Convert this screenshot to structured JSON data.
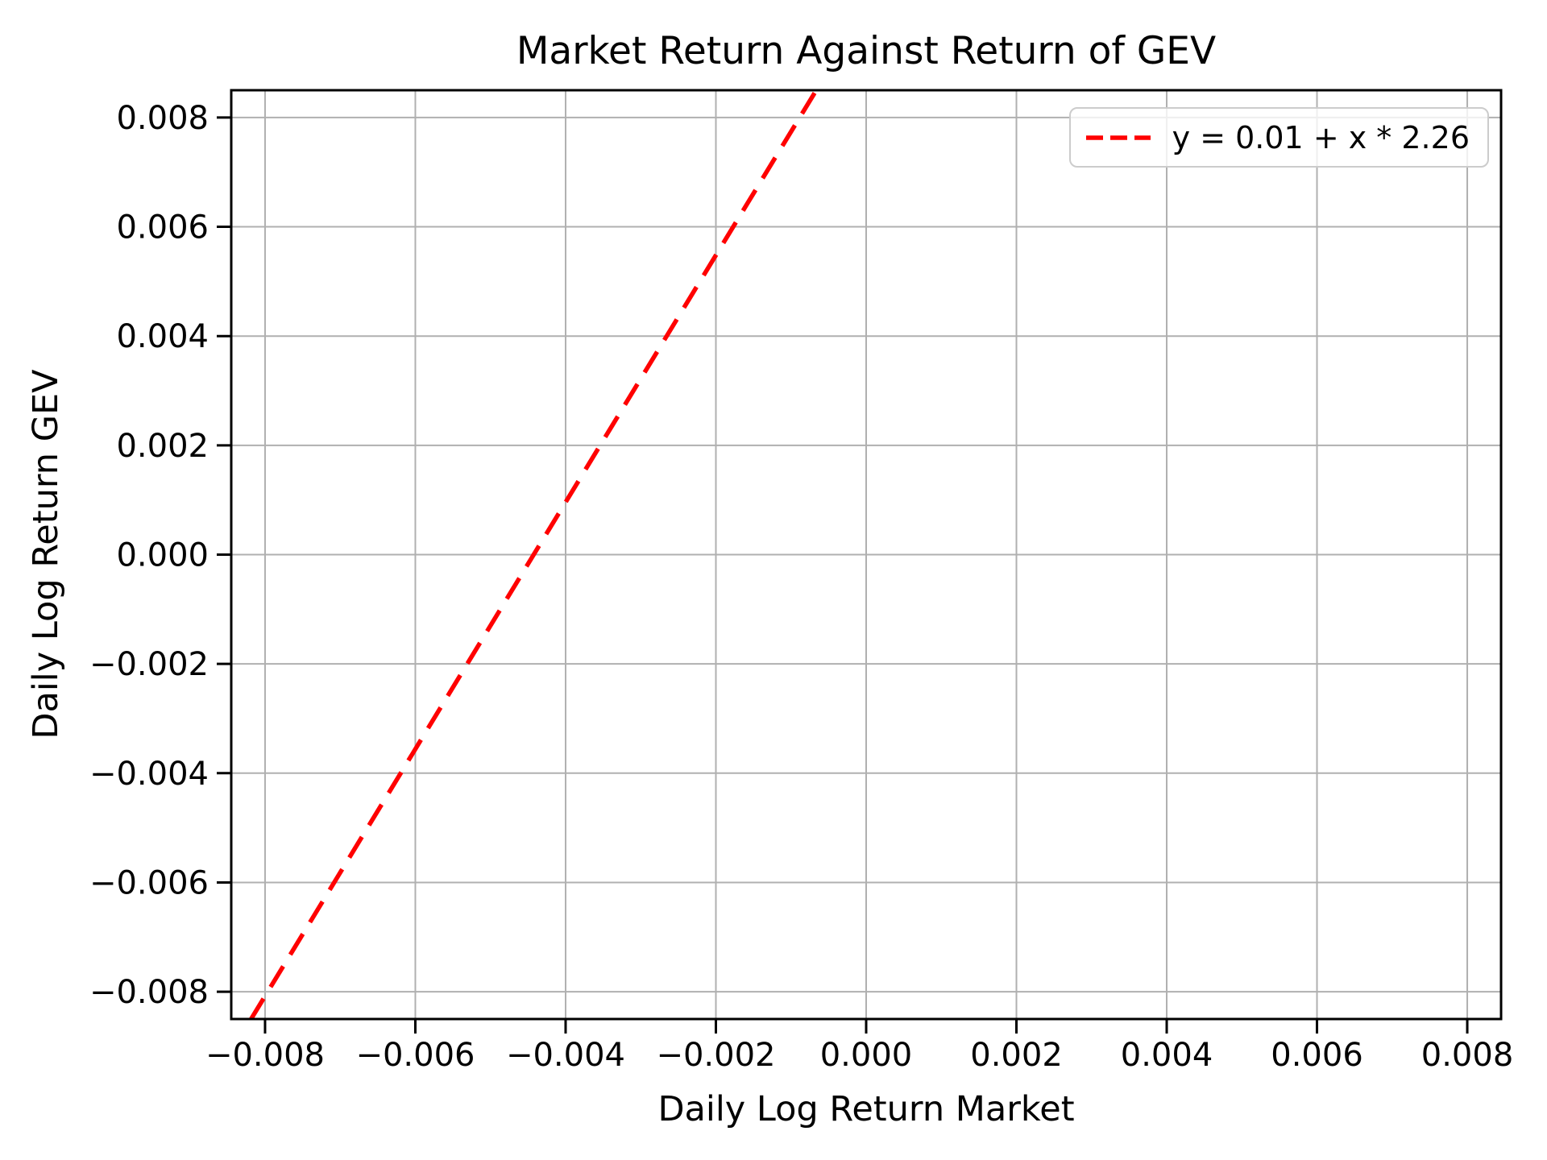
{
  "chart_data": {
    "type": "line",
    "title": "Market Return Against Return of GEV",
    "xlabel": "Daily Log Return Market",
    "ylabel": "Daily Log Return GEV",
    "xlim": [
      -0.00845,
      0.00845
    ],
    "ylim": [
      -0.0085,
      0.0085
    ],
    "grid": true,
    "grid_color": "#b0b0b0",
    "axis_color": "#000000",
    "xticks": {
      "values": [
        -0.008,
        -0.006,
        -0.004,
        -0.002,
        0.0,
        0.002,
        0.004,
        0.006,
        0.008
      ],
      "labels": [
        "−0.008",
        "−0.006",
        "−0.004",
        "−0.002",
        "0.000",
        "0.002",
        "0.004",
        "0.006",
        "0.008"
      ]
    },
    "yticks": {
      "values": [
        -0.008,
        -0.006,
        -0.004,
        -0.002,
        0.0,
        0.002,
        0.004,
        0.006,
        0.008
      ],
      "labels": [
        "−0.008",
        "−0.006",
        "−0.004",
        "−0.002",
        "0.000",
        "0.002",
        "0.004",
        "0.006",
        "0.008"
      ]
    },
    "series": [
      {
        "name": "y = 0.01 + x * 2.26",
        "kind": "regression_line",
        "intercept": 0.01,
        "slope": 2.26,
        "color": "#ff0000",
        "linestyle": "dashed"
      }
    ],
    "legend": {
      "position": "upper right",
      "entries": [
        {
          "label": "y = 0.01 + x * 2.26",
          "color": "#ff0000",
          "linestyle": "dashed"
        }
      ]
    }
  }
}
